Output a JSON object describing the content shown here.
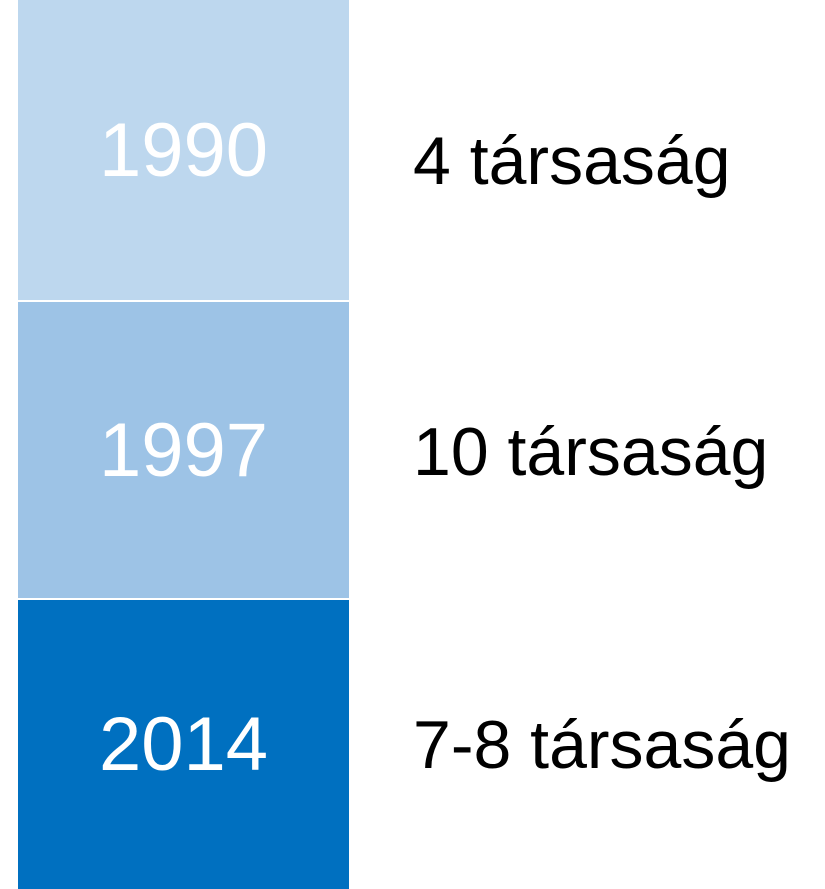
{
  "rows": [
    {
      "year": "1990",
      "text": "4 társaság"
    },
    {
      "year": "1997",
      "text": "10 társaság"
    },
    {
      "year": "2014",
      "text": "7-8 társaság"
    }
  ]
}
